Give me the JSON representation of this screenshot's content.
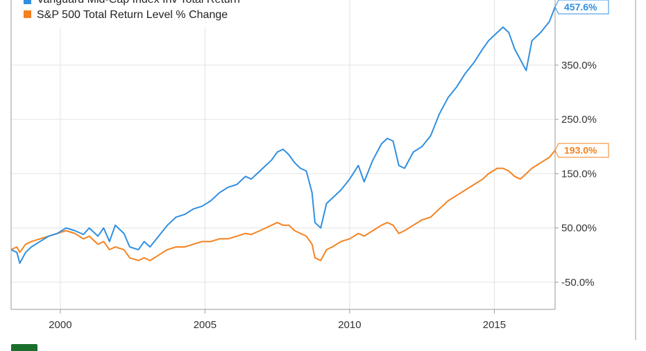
{
  "chart_data": {
    "type": "line",
    "title": "",
    "xlabel": "",
    "ylabel": "",
    "xlim": [
      1998.3,
      2017.1
    ],
    "ylim": [
      -100,
      470
    ],
    "x_ticks": [
      2000,
      2005,
      2010,
      2015
    ],
    "x_tick_labels": [
      "2000",
      "2005",
      "2010",
      "2015"
    ],
    "y_ticks": [
      -50,
      50,
      150,
      250,
      350
    ],
    "y_tick_labels": [
      "-50.0%",
      "50.00%",
      "150.0%",
      "250.0%",
      "350.0%"
    ],
    "grid": true,
    "legend": {
      "placement": "top-left",
      "entries": [
        "Vanguard Mid-Cap Index Inv Total Return",
        "S&P 500 Total Return Level % Change"
      ]
    },
    "series": [
      {
        "name": "Vanguard Mid-Cap Index Inv Total Return",
        "color": "#2f8fe0",
        "end_label": "457.6%",
        "x": [
          1998.3,
          1998.5,
          1998.6,
          1998.8,
          1999.0,
          1999.3,
          1999.6,
          1999.9,
          2000.2,
          2000.5,
          2000.8,
          2001.0,
          2001.3,
          2001.5,
          2001.7,
          2001.9,
          2002.2,
          2002.4,
          2002.7,
          2002.9,
          2003.1,
          2003.4,
          2003.7,
          2004.0,
          2004.3,
          2004.6,
          2004.9,
          2005.2,
          2005.5,
          2005.8,
          2006.1,
          2006.4,
          2006.6,
          2006.9,
          2007.1,
          2007.3,
          2007.5,
          2007.7,
          2007.9,
          2008.1,
          2008.3,
          2008.5,
          2008.7,
          2008.8,
          2009.0,
          2009.2,
          2009.4,
          2009.7,
          2010.0,
          2010.3,
          2010.5,
          2010.8,
          2011.1,
          2011.3,
          2011.5,
          2011.7,
          2011.9,
          2012.2,
          2012.5,
          2012.8,
          2013.1,
          2013.4,
          2013.7,
          2014.0,
          2014.3,
          2014.6,
          2014.8,
          2015.1,
          2015.3,
          2015.5,
          2015.7,
          2015.9,
          2016.1,
          2016.3,
          2016.6,
          2016.9,
          2017.1
        ],
        "y": [
          10,
          5,
          -15,
          5,
          15,
          25,
          35,
          40,
          50,
          45,
          38,
          50,
          35,
          50,
          25,
          55,
          40,
          15,
          10,
          25,
          15,
          35,
          55,
          70,
          75,
          85,
          90,
          100,
          115,
          125,
          130,
          145,
          140,
          155,
          165,
          175,
          190,
          195,
          185,
          170,
          160,
          155,
          115,
          60,
          50,
          95,
          105,
          120,
          140,
          165,
          135,
          175,
          205,
          215,
          210,
          165,
          160,
          190,
          200,
          220,
          260,
          290,
          310,
          335,
          355,
          380,
          395,
          410,
          420,
          410,
          380,
          360,
          340,
          395,
          410,
          430,
          457.6
        ]
      },
      {
        "name": "S&P 500 Total Return Level % Change",
        "color": "#f58220",
        "end_label": "193.0%",
        "x": [
          1998.3,
          1998.5,
          1998.6,
          1998.8,
          1999.0,
          1999.3,
          1999.6,
          1999.9,
          2000.2,
          2000.5,
          2000.8,
          2001.0,
          2001.3,
          2001.5,
          2001.7,
          2001.9,
          2002.2,
          2002.4,
          2002.7,
          2002.9,
          2003.1,
          2003.4,
          2003.7,
          2004.0,
          2004.3,
          2004.6,
          2004.9,
          2005.2,
          2005.5,
          2005.8,
          2006.1,
          2006.4,
          2006.6,
          2006.9,
          2007.1,
          2007.3,
          2007.5,
          2007.7,
          2007.9,
          2008.1,
          2008.3,
          2008.5,
          2008.7,
          2008.8,
          2009.0,
          2009.2,
          2009.4,
          2009.7,
          2010.0,
          2010.3,
          2010.5,
          2010.8,
          2011.1,
          2011.3,
          2011.5,
          2011.7,
          2011.9,
          2012.2,
          2012.5,
          2012.8,
          2013.1,
          2013.4,
          2013.7,
          2014.0,
          2014.3,
          2014.6,
          2014.8,
          2015.1,
          2015.3,
          2015.5,
          2015.7,
          2015.9,
          2016.1,
          2016.3,
          2016.6,
          2016.9,
          2017.1
        ],
        "y": [
          10,
          15,
          5,
          20,
          25,
          30,
          35,
          40,
          45,
          40,
          30,
          35,
          20,
          25,
          10,
          15,
          10,
          -5,
          -10,
          -5,
          -10,
          0,
          10,
          15,
          15,
          20,
          25,
          25,
          30,
          30,
          35,
          40,
          38,
          45,
          50,
          55,
          60,
          55,
          55,
          45,
          40,
          35,
          20,
          -5,
          -10,
          10,
          15,
          25,
          30,
          40,
          35,
          45,
          55,
          60,
          55,
          40,
          45,
          55,
          65,
          70,
          85,
          100,
          110,
          120,
          130,
          140,
          150,
          160,
          160,
          155,
          145,
          140,
          150,
          160,
          170,
          180,
          193.0
        ]
      }
    ]
  },
  "logo": {
    "icon": "ycharts-logo-icon",
    "color": "#1b6f2c"
  }
}
